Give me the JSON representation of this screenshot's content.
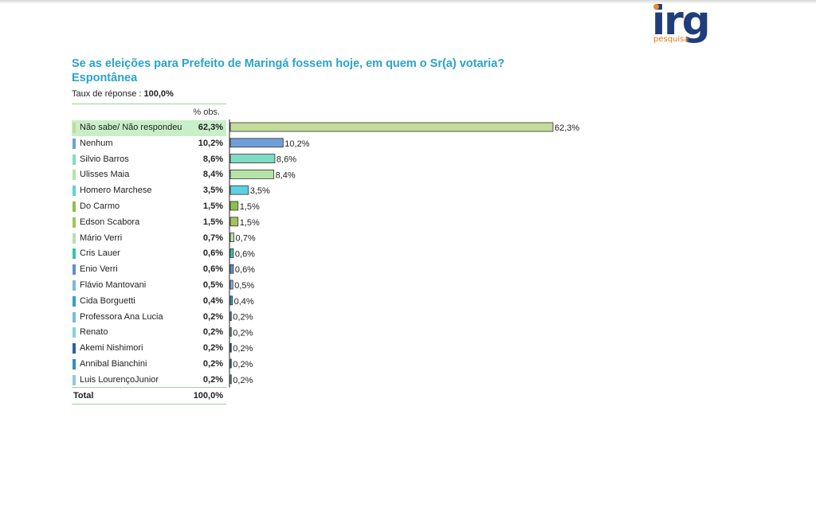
{
  "logo": {
    "word": "irg",
    "sub": "pesquisa",
    "accent": "#f08a1e",
    "brand": "#1f3d7a"
  },
  "header": {
    "title_line1": "Se as eleições para Prefeito de Maringá fossem hoje, em quem o Sr(a) votaria?",
    "title_line2": "Espontânea",
    "taux_label": "Taux de réponse : ",
    "taux_value": "100,0%",
    "col_header": "% obs."
  },
  "total": {
    "label": "Total",
    "value": "100,0%"
  },
  "chart_data": {
    "type": "bar",
    "orientation": "horizontal",
    "title": "Se as eleições para Prefeito de Maringá fossem hoje, em quem o Sr(a) votaria? Espontânea",
    "categories": [
      "Não sabe/ Não respondeu",
      "Nenhum",
      "Silvio Barros",
      "Ulisses Maia",
      "Homero Marchese",
      "Do Carmo",
      "Edson Scabora",
      "Mário Verri",
      "Cris Lauer",
      "Enio Verri",
      "Flávio Mantovani",
      "Cida Borguetti",
      "Professora Ana Lucia",
      "Renato",
      "Akemi Nishimori",
      "Annibal Bianchini",
      "Luis LourençoJunior"
    ],
    "values": [
      62.3,
      10.2,
      8.6,
      8.4,
      3.5,
      1.5,
      1.5,
      0.7,
      0.6,
      0.6,
      0.5,
      0.4,
      0.2,
      0.2,
      0.2,
      0.2,
      0.2
    ],
    "value_labels": [
      "62,3%",
      "10,2%",
      "8,6%",
      "8,4%",
      "3,5%",
      "1,5%",
      "1,5%",
      "0,7%",
      "0,6%",
      "0,6%",
      "0,5%",
      "0,4%",
      "0,2%",
      "0,2%",
      "0,2%",
      "0,2%",
      "0,2%"
    ],
    "colors": [
      "#c3dc9a",
      "#6f9fd8",
      "#7fdcc4",
      "#b5e3a8",
      "#5ed0e0",
      "#8cc152",
      "#a5c35a",
      "#b8e0b0",
      "#37c4a8",
      "#5d8fd6",
      "#7db7e0",
      "#2fa3c4",
      "#74bde0",
      "#7fd6d8",
      "#2e5fa8",
      "#2a8fc4",
      "#8fc9e0"
    ],
    "xlim": [
      0,
      62.3
    ],
    "grid": false
  }
}
